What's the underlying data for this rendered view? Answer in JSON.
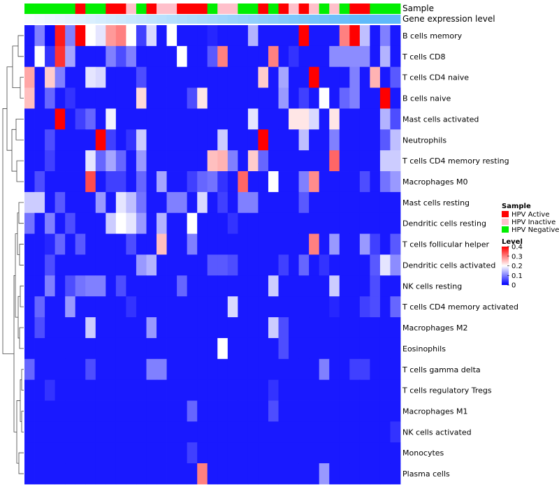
{
  "chart_data": {
    "type": "heatmap",
    "colors": {
      "low": "#0000ff",
      "mid": "#ffffff",
      "high": "#ff0000"
    },
    "annotation_tracks": [
      "Sample",
      "Gene expression level"
    ],
    "legend": {
      "sample_title": "Sample",
      "sample_groups": [
        {
          "label": "HPV Active",
          "color": "#ff0000"
        },
        {
          "label": "HPV Inactive",
          "color": "#ffc0cb"
        },
        {
          "label": "HPV Negative",
          "color": "#00ee00"
        }
      ],
      "level_title": "Level",
      "level_ticks": [
        "0.4",
        "0.3",
        "0.2",
        "0.1",
        "0"
      ],
      "level_range": [
        0,
        0.4
      ],
      "placement": "right"
    },
    "sample_groups": [
      "HPV Negative",
      "HPV Negative",
      "HPV Negative",
      "HPV Negative",
      "HPV Negative",
      "HPV Active",
      "HPV Negative",
      "HPV Negative",
      "HPV Active",
      "HPV Active",
      "HPV Inactive",
      "HPV Negative",
      "HPV Active",
      "HPV Inactive",
      "HPV Inactive",
      "HPV Active",
      "HPV Active",
      "HPV Active",
      "HPV Negative",
      "HPV Inactive",
      "HPV Inactive",
      "HPV Negative",
      "HPV Negative",
      "HPV Active",
      "HPV Negative",
      "HPV Active",
      "HPV Inactive",
      "HPV Active",
      "HPV Inactive",
      "HPV Negative",
      "HPV Inactive",
      "HPV Negative",
      "HPV Active",
      "HPV Active",
      "HPV Negative",
      "HPV Negative",
      "HPV Negative"
    ],
    "gene_expression_level": [
      0.05,
      0.08,
      0.11,
      0.14,
      0.17,
      0.2,
      0.23,
      0.26,
      0.29,
      0.31,
      0.34,
      0.37,
      0.4,
      0.43,
      0.46,
      0.49,
      0.51,
      0.54,
      0.57,
      0.6,
      0.63,
      0.66,
      0.69,
      0.71,
      0.74,
      0.77,
      0.8,
      0.83,
      0.86,
      0.89,
      0.91,
      0.94,
      0.97,
      1.0,
      1.0,
      1.0,
      1.0
    ],
    "rows": [
      "B cells memory",
      "T cells CD8",
      "T cells CD4 naive",
      "B cells naive",
      "Mast cells activated",
      "Neutrophils",
      "T cells CD4 memory resting",
      "Macrophages M0",
      "Mast cells resting",
      "Dendritic cells resting",
      "T cells follicular helper",
      "Dendritic cells activated",
      "NK cells resting",
      "T cells CD4 memory activated",
      "Macrophages M2",
      "Eosinophils",
      "T cells gamma delta",
      "T cells regulatory  Tregs",
      "Macrophages M1",
      "NK cells activated",
      "Monocytes",
      "Plasma cells"
    ],
    "values": [
      [
        0.02,
        0.1,
        0.01,
        0.38,
        0.1,
        0.4,
        0.2,
        0.18,
        0.28,
        0.3,
        0.2,
        0.05,
        0.17,
        0.02,
        0.2,
        0.02,
        0.02,
        0.02,
        0.03,
        0.02,
        0.02,
        0.02,
        0.14,
        0.02,
        0.02,
        0.02,
        0.02,
        0.4,
        0.02,
        0.02,
        0.02,
        0.3,
        0.4,
        0.15,
        0.02,
        0.1,
        0.02
      ],
      [
        0.02,
        0.2,
        0.04,
        0.36,
        0.13,
        0.02,
        0.02,
        0.02,
        0.1,
        0.06,
        0.1,
        0.02,
        0.02,
        0.02,
        0.02,
        0.2,
        0.02,
        0.02,
        0.07,
        0.3,
        0.02,
        0.02,
        0.02,
        0.02,
        0.3,
        0.02,
        0.04,
        0.02,
        0.02,
        0.02,
        0.11,
        0.11,
        0.11,
        0.11,
        0.02,
        0.14,
        0.02
      ],
      [
        0.27,
        0.02,
        0.24,
        0.1,
        0.02,
        0.02,
        0.18,
        0.17,
        0.02,
        0.02,
        0.02,
        0.06,
        0.02,
        0.02,
        0.02,
        0.02,
        0.02,
        0.02,
        0.02,
        0.02,
        0.02,
        0.02,
        0.02,
        0.24,
        0.02,
        0.13,
        0.02,
        0.02,
        0.4,
        0.02,
        0.02,
        0.02,
        0.1,
        0.02,
        0.26,
        0.02,
        0.07
      ],
      [
        0.25,
        0.02,
        0.08,
        0.02,
        0.04,
        0.02,
        0.02,
        0.02,
        0.02,
        0.02,
        0.02,
        0.23,
        0.02,
        0.02,
        0.02,
        0.02,
        0.06,
        0.22,
        0.02,
        0.02,
        0.02,
        0.02,
        0.02,
        0.02,
        0.02,
        0.12,
        0.02,
        0.05,
        0.02,
        0.2,
        0.02,
        0.08,
        0.1,
        0.02,
        0.02,
        0.4,
        0.02
      ],
      [
        0.02,
        0.02,
        0.02,
        0.4,
        0.02,
        0.05,
        0.08,
        0.02,
        0.19,
        0.02,
        0.02,
        0.02,
        0.02,
        0.02,
        0.02,
        0.02,
        0.02,
        0.02,
        0.02,
        0.02,
        0.02,
        0.02,
        0.18,
        0.02,
        0.02,
        0.02,
        0.22,
        0.22,
        0.17,
        0.02,
        0.22,
        0.02,
        0.02,
        0.02,
        0.02,
        0.14,
        0.06
      ],
      [
        0.02,
        0.02,
        0.06,
        0.02,
        0.02,
        0.02,
        0.02,
        0.4,
        0.05,
        0.02,
        0.04,
        0.16,
        0.02,
        0.02,
        0.02,
        0.02,
        0.02,
        0.02,
        0.02,
        0.16,
        0.02,
        0.02,
        0.02,
        0.4,
        0.02,
        0.02,
        0.02,
        0.15,
        0.02,
        0.02,
        0.1,
        0.02,
        0.02,
        0.02,
        0.02,
        0.07,
        0.15
      ],
      [
        0.02,
        0.02,
        0.05,
        0.02,
        0.02,
        0.02,
        0.18,
        0.08,
        0.13,
        0.08,
        0.02,
        0.12,
        0.02,
        0.02,
        0.02,
        0.02,
        0.02,
        0.02,
        0.25,
        0.26,
        0.1,
        0.02,
        0.24,
        0.08,
        0.02,
        0.02,
        0.02,
        0.02,
        0.02,
        0.02,
        0.32,
        0.02,
        0.02,
        0.02,
        0.02,
        0.16,
        0.16
      ],
      [
        0.02,
        0.06,
        0.02,
        0.02,
        0.02,
        0.02,
        0.34,
        0.02,
        0.05,
        0.05,
        0.02,
        0.08,
        0.02,
        0.13,
        0.02,
        0.02,
        0.05,
        0.08,
        0.09,
        0.04,
        0.02,
        0.32,
        0.02,
        0.02,
        0.2,
        0.02,
        0.02,
        0.1,
        0.29,
        0.02,
        0.02,
        0.02,
        0.02,
        0.06,
        0.02,
        0.09,
        0.12
      ],
      [
        0.16,
        0.16,
        0.02,
        0.07,
        0.02,
        0.02,
        0.02,
        0.12,
        0.02,
        0.18,
        0.15,
        0.09,
        0.02,
        0.02,
        0.1,
        0.1,
        0.02,
        0.17,
        0.02,
        0.05,
        0.02,
        0.1,
        0.1,
        0.02,
        0.02,
        0.02,
        0.02,
        0.07,
        0.02,
        0.02,
        0.02,
        0.02,
        0.02,
        0.02,
        0.02,
        0.02,
        0.02
      ],
      [
        0.09,
        0.02,
        0.1,
        0.02,
        0.06,
        0.02,
        0.02,
        0.02,
        0.16,
        0.2,
        0.18,
        0.12,
        0.02,
        0.14,
        0.02,
        0.02,
        0.2,
        0.02,
        0.02,
        0.02,
        0.04,
        0.02,
        0.02,
        0.02,
        0.02,
        0.02,
        0.02,
        0.02,
        0.02,
        0.02,
        0.02,
        0.02,
        0.02,
        0.02,
        0.02,
        0.02,
        0.02
      ],
      [
        0.02,
        0.02,
        0.03,
        0.08,
        0.02,
        0.07,
        0.02,
        0.02,
        0.02,
        0.02,
        0.06,
        0.02,
        0.02,
        0.25,
        0.02,
        0.02,
        0.1,
        0.02,
        0.02,
        0.02,
        0.02,
        0.02,
        0.02,
        0.02,
        0.02,
        0.02,
        0.02,
        0.02,
        0.3,
        0.02,
        0.12,
        0.02,
        0.02,
        0.12,
        0.05,
        0.02,
        0.07
      ],
      [
        0.02,
        0.02,
        0.06,
        0.02,
        0.02,
        0.02,
        0.02,
        0.02,
        0.02,
        0.02,
        0.02,
        0.12,
        0.14,
        0.02,
        0.02,
        0.02,
        0.02,
        0.02,
        0.07,
        0.07,
        0.06,
        0.02,
        0.02,
        0.02,
        0.02,
        0.05,
        0.02,
        0.08,
        0.02,
        0.04,
        0.02,
        0.02,
        0.02,
        0.02,
        0.07,
        0.18,
        0.11
      ],
      [
        0.02,
        0.02,
        0.1,
        0.02,
        0.06,
        0.09,
        0.1,
        0.1,
        0.02,
        0.06,
        0.02,
        0.02,
        0.02,
        0.02,
        0.02,
        0.08,
        0.02,
        0.02,
        0.02,
        0.02,
        0.02,
        0.02,
        0.02,
        0.02,
        0.16,
        0.02,
        0.02,
        0.02,
        0.02,
        0.02,
        0.16,
        0.02,
        0.02,
        0.02,
        0.06,
        0.02,
        0.02
      ],
      [
        0.02,
        0.08,
        0.02,
        0.02,
        0.12,
        0.02,
        0.02,
        0.02,
        0.02,
        0.02,
        0.04,
        0.02,
        0.02,
        0.02,
        0.02,
        0.02,
        0.02,
        0.02,
        0.02,
        0.02,
        0.17,
        0.02,
        0.02,
        0.02,
        0.02,
        0.02,
        0.02,
        0.02,
        0.02,
        0.02,
        0.03,
        0.02,
        0.02,
        0.05,
        0.06,
        0.02,
        0.08
      ],
      [
        0.02,
        0.06,
        0.02,
        0.02,
        0.02,
        0.02,
        0.16,
        0.02,
        0.02,
        0.02,
        0.02,
        0.02,
        0.12,
        0.02,
        0.02,
        0.02,
        0.02,
        0.02,
        0.02,
        0.02,
        0.02,
        0.02,
        0.02,
        0.02,
        0.16,
        0.06,
        0.02,
        0.02,
        0.02,
        0.02,
        0.02,
        0.02,
        0.02,
        0.02,
        0.02,
        0.02,
        0.02
      ],
      [
        0.02,
        0.02,
        0.02,
        0.02,
        0.02,
        0.02,
        0.02,
        0.02,
        0.02,
        0.02,
        0.02,
        0.02,
        0.02,
        0.02,
        0.02,
        0.02,
        0.02,
        0.02,
        0.02,
        0.2,
        0.02,
        0.02,
        0.02,
        0.02,
        0.02,
        0.06,
        0.02,
        0.02,
        0.02,
        0.02,
        0.02,
        0.02,
        0.02,
        0.02,
        0.02,
        0.02,
        0.02
      ],
      [
        0.08,
        0.02,
        0.02,
        0.02,
        0.02,
        0.02,
        0.06,
        0.02,
        0.02,
        0.02,
        0.02,
        0.02,
        0.1,
        0.1,
        0.02,
        0.02,
        0.02,
        0.02,
        0.02,
        0.02,
        0.02,
        0.02,
        0.02,
        0.02,
        0.02,
        0.02,
        0.02,
        0.02,
        0.02,
        0.1,
        0.02,
        0.02,
        0.05,
        0.05,
        0.02,
        0.02,
        0.02
      ],
      [
        0.02,
        0.02,
        0.04,
        0.02,
        0.02,
        0.02,
        0.02,
        0.02,
        0.02,
        0.02,
        0.02,
        0.02,
        0.02,
        0.02,
        0.02,
        0.02,
        0.02,
        0.02,
        0.02,
        0.02,
        0.02,
        0.02,
        0.02,
        0.02,
        0.04,
        0.02,
        0.02,
        0.02,
        0.02,
        0.02,
        0.02,
        0.02,
        0.02,
        0.02,
        0.02,
        0.02,
        0.02
      ],
      [
        0.02,
        0.02,
        0.02,
        0.02,
        0.02,
        0.02,
        0.02,
        0.02,
        0.02,
        0.02,
        0.02,
        0.02,
        0.02,
        0.02,
        0.02,
        0.02,
        0.08,
        0.02,
        0.02,
        0.02,
        0.02,
        0.02,
        0.02,
        0.02,
        0.06,
        0.02,
        0.02,
        0.02,
        0.02,
        0.02,
        0.02,
        0.02,
        0.02,
        0.02,
        0.02,
        0.02,
        0.02
      ],
      [
        0.02,
        0.02,
        0.02,
        0.02,
        0.02,
        0.02,
        0.02,
        0.02,
        0.02,
        0.02,
        0.02,
        0.02,
        0.02,
        0.02,
        0.02,
        0.02,
        0.02,
        0.02,
        0.02,
        0.02,
        0.02,
        0.02,
        0.02,
        0.02,
        0.02,
        0.02,
        0.02,
        0.02,
        0.02,
        0.02,
        0.02,
        0.02,
        0.02,
        0.02,
        0.02,
        0.02,
        0.04
      ],
      [
        0.02,
        0.02,
        0.02,
        0.02,
        0.02,
        0.02,
        0.02,
        0.02,
        0.02,
        0.02,
        0.02,
        0.02,
        0.02,
        0.02,
        0.02,
        0.02,
        0.05,
        0.02,
        0.02,
        0.02,
        0.02,
        0.02,
        0.02,
        0.02,
        0.02,
        0.02,
        0.02,
        0.02,
        0.02,
        0.02,
        0.02,
        0.02,
        0.02,
        0.02,
        0.02,
        0.02,
        0.02
      ],
      [
        0.02,
        0.02,
        0.02,
        0.02,
        0.02,
        0.02,
        0.02,
        0.02,
        0.02,
        0.02,
        0.02,
        0.02,
        0.02,
        0.02,
        0.02,
        0.02,
        0.02,
        0.3,
        0.02,
        0.02,
        0.02,
        0.02,
        0.02,
        0.02,
        0.02,
        0.02,
        0.02,
        0.02,
        0.02,
        0.12,
        0.02,
        0.02,
        0.02,
        0.02,
        0.02,
        0.02,
        0.02
      ]
    ]
  }
}
